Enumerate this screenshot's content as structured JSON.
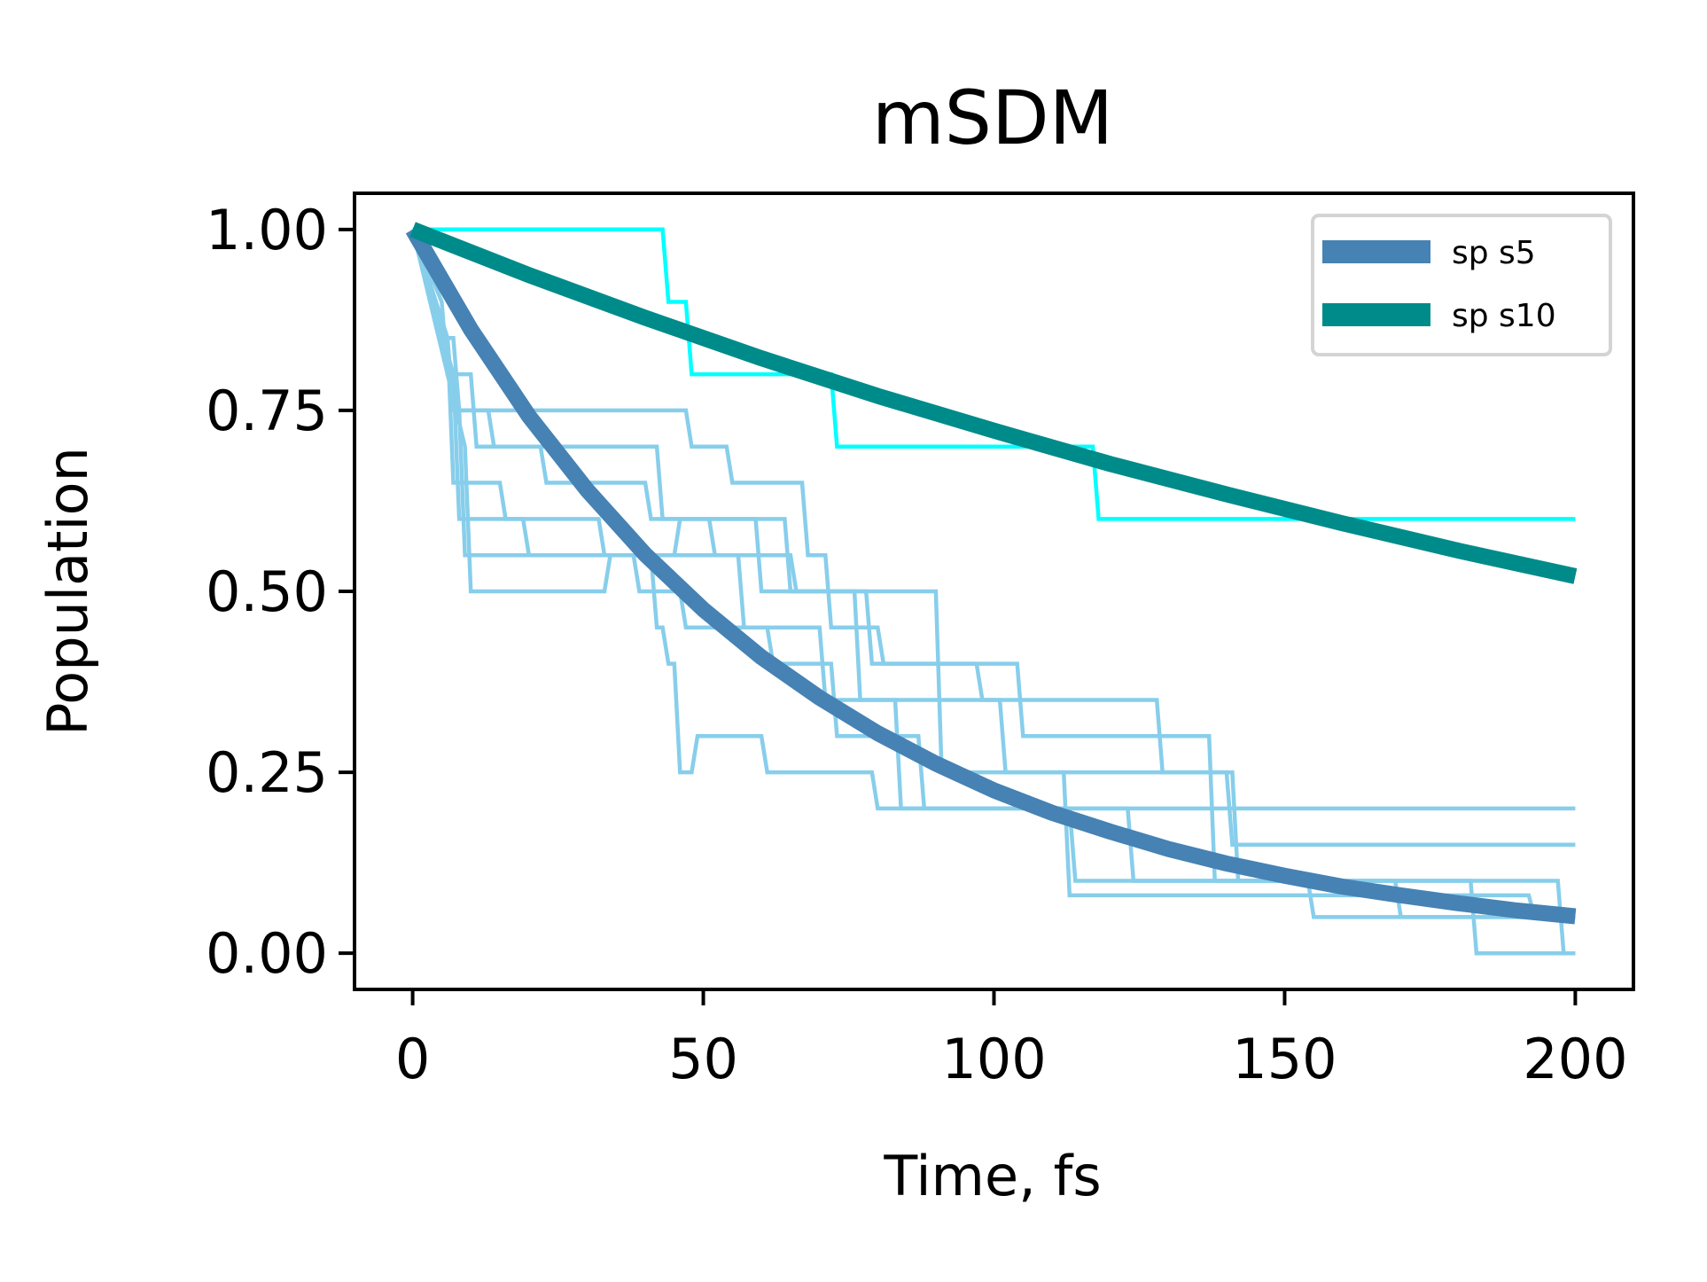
{
  "chart_data": {
    "type": "line",
    "title": "mSDM",
    "xlabel": "Time, fs",
    "ylabel": "Population",
    "xlim": [
      -10,
      210
    ],
    "ylim": [
      -0.05,
      1.05
    ],
    "xticks": [
      0,
      50,
      100,
      150,
      200
    ],
    "xtick_labels": [
      "0",
      "50",
      "100",
      "150",
      "200"
    ],
    "yticks": [
      0,
      0.25,
      0.5,
      0.75,
      1.0
    ],
    "ytick_labels": [
      "0.00",
      "0.25",
      "0.50",
      "0.75",
      "1.00"
    ],
    "grid": false,
    "legend_position": "top-right",
    "series": [
      {
        "name": "sp s5",
        "color": "#4682b4",
        "style": "thick",
        "x": [
          0,
          10,
          20,
          30,
          40,
          50,
          60,
          70,
          80,
          90,
          100,
          110,
          120,
          130,
          140,
          150,
          160,
          170,
          180,
          190,
          200
        ],
        "y": [
          1.0,
          0.862,
          0.742,
          0.64,
          0.551,
          0.475,
          0.409,
          0.353,
          0.304,
          0.262,
          0.225,
          0.194,
          0.168,
          0.144,
          0.124,
          0.107,
          0.092,
          0.08,
          0.069,
          0.059,
          0.051
        ]
      },
      {
        "name": "sp s10",
        "color": "#008b8b",
        "style": "thick",
        "x": [
          0,
          20,
          40,
          60,
          80,
          100,
          120,
          140,
          160,
          180,
          200
        ],
        "y": [
          1.0,
          0.937,
          0.878,
          0.822,
          0.77,
          0.722,
          0.676,
          0.634,
          0.594,
          0.556,
          0.521
        ]
      },
      {
        "color": "#00ffff",
        "style": "step",
        "x": [
          0,
          43,
          44,
          47,
          48,
          72,
          73,
          117,
          118,
          200
        ],
        "y": [
          1.0,
          1.0,
          0.9,
          0.9,
          0.8,
          0.8,
          0.7,
          0.7,
          0.6,
          0.6
        ]
      },
      {
        "color": "#87ceeb",
        "style": "step",
        "x": [
          0,
          4,
          5,
          7,
          8,
          47,
          48,
          54,
          55,
          67,
          68,
          71,
          72,
          80,
          81,
          97,
          98,
          128,
          129,
          140,
          141,
          200
        ],
        "y": [
          1.0,
          0.9,
          0.85,
          0.85,
          0.75,
          0.75,
          0.7,
          0.7,
          0.65,
          0.65,
          0.55,
          0.55,
          0.45,
          0.45,
          0.4,
          0.4,
          0.35,
          0.35,
          0.25,
          0.25,
          0.15,
          0.15
        ]
      },
      {
        "color": "#87ceeb",
        "style": "step",
        "x": [
          0,
          5,
          6,
          10,
          11,
          22,
          23,
          40,
          41,
          64,
          65,
          78,
          79,
          104,
          105,
          137,
          138,
          182,
          183,
          200
        ],
        "y": [
          1.0,
          0.9,
          0.8,
          0.8,
          0.7,
          0.7,
          0.65,
          0.65,
          0.6,
          0.6,
          0.5,
          0.5,
          0.4,
          0.4,
          0.3,
          0.3,
          0.1,
          0.1,
          0.0,
          0.0
        ]
      },
      {
        "color": "#87ceeb",
        "style": "step",
        "x": [
          0,
          6,
          7,
          13,
          14,
          42,
          43,
          59,
          60,
          76,
          77,
          101,
          102,
          141,
          142,
          197,
          198,
          200
        ],
        "y": [
          1.0,
          0.85,
          0.75,
          0.75,
          0.7,
          0.7,
          0.6,
          0.6,
          0.5,
          0.5,
          0.35,
          0.35,
          0.25,
          0.25,
          0.1,
          0.1,
          0.0,
          0.0
        ]
      },
      {
        "color": "#87ceeb",
        "style": "step",
        "x": [
          0,
          6,
          7,
          15,
          16,
          32,
          33,
          56,
          57,
          70,
          71,
          83,
          84,
          113,
          114,
          169,
          170,
          200
        ],
        "y": [
          1.0,
          0.85,
          0.65,
          0.65,
          0.6,
          0.6,
          0.55,
          0.55,
          0.45,
          0.45,
          0.35,
          0.35,
          0.2,
          0.2,
          0.1,
          0.1,
          0.05,
          0.05
        ]
      },
      {
        "color": "#87ceeb",
        "style": "step",
        "x": [
          0,
          7,
          8,
          19,
          20,
          38,
          39,
          46,
          47,
          61,
          62,
          72,
          73,
          87,
          88,
          123,
          124,
          154,
          155,
          200
        ],
        "y": [
          1.0,
          0.8,
          0.6,
          0.6,
          0.55,
          0.55,
          0.5,
          0.5,
          0.45,
          0.45,
          0.4,
          0.4,
          0.3,
          0.3,
          0.2,
          0.2,
          0.1,
          0.1,
          0.05,
          0.05
        ]
      },
      {
        "color": "#87ceeb",
        "style": "step",
        "x": [
          0,
          8,
          9,
          41,
          42,
          43,
          44,
          45,
          46,
          48,
          49,
          60,
          61,
          79,
          80,
          200
        ],
        "y": [
          1.0,
          0.75,
          0.55,
          0.55,
          0.45,
          0.45,
          0.4,
          0.4,
          0.25,
          0.25,
          0.3,
          0.3,
          0.25,
          0.25,
          0.2,
          0.2
        ]
      },
      {
        "color": "#87ceeb",
        "style": "step",
        "x": [
          0,
          9,
          10,
          33,
          34,
          45,
          46,
          51,
          52,
          65,
          66,
          90,
          91,
          112,
          113,
          192,
          193,
          200
        ],
        "y": [
          1.0,
          0.7,
          0.5,
          0.5,
          0.55,
          0.55,
          0.6,
          0.6,
          0.55,
          0.55,
          0.5,
          0.5,
          0.25,
          0.25,
          0.08,
          0.08,
          0.05,
          0.05
        ]
      }
    ]
  }
}
